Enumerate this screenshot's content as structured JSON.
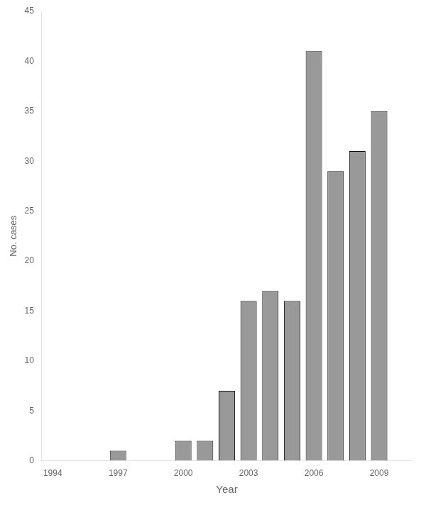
{
  "chart_data": {
    "type": "bar",
    "xlabel": "Year",
    "ylabel": "No. cases",
    "x": [
      1994,
      1995,
      1996,
      1997,
      1998,
      1999,
      2000,
      2001,
      2002,
      2003,
      2004,
      2005,
      2006,
      2007,
      2008,
      2009
    ],
    "values": [
      0,
      0,
      0,
      1,
      0,
      0,
      2,
      2,
      7,
      16,
      17,
      16,
      41,
      29,
      31,
      35
    ],
    "color": "#999999",
    "xlim": [
      1993.5,
      2010.5
    ],
    "xticks": [
      1994,
      1997,
      2000,
      2003,
      2006,
      2009
    ],
    "ylim": [
      0,
      45
    ],
    "yticks": [
      0,
      5,
      10,
      15,
      20,
      25,
      30,
      35,
      40,
      45
    ],
    "grid": false
  }
}
